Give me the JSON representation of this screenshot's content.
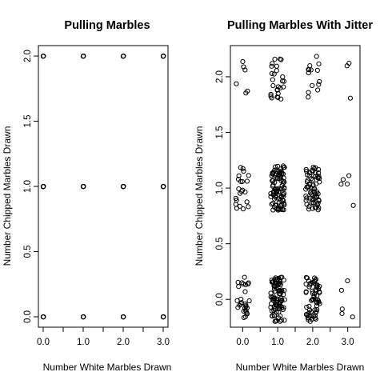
{
  "chart_data": [
    {
      "type": "scatter",
      "title": "Pulling Marbles",
      "xlabel": "Number White Marbles Drawn",
      "ylabel": "Number Chipped Marbles Drawn",
      "x_ticks": [
        "0.0",
        "1.0",
        "2.0",
        "3.0"
      ],
      "y_ticks": [
        "0.0",
        "0.5",
        "1.0",
        "1.5",
        "2.0"
      ],
      "xlim": [
        -0.12,
        3.12
      ],
      "ylim": [
        -0.08,
        2.08
      ],
      "grid": false,
      "marker": "open-circle",
      "points": [
        {
          "x": 0,
          "y": 0
        },
        {
          "x": 1,
          "y": 0
        },
        {
          "x": 2,
          "y": 0
        },
        {
          "x": 3,
          "y": 0
        },
        {
          "x": 0,
          "y": 1
        },
        {
          "x": 1,
          "y": 1
        },
        {
          "x": 2,
          "y": 1
        },
        {
          "x": 3,
          "y": 1
        },
        {
          "x": 0,
          "y": 2
        },
        {
          "x": 1,
          "y": 2
        },
        {
          "x": 2,
          "y": 2
        },
        {
          "x": 3,
          "y": 2
        }
      ]
    },
    {
      "type": "scatter",
      "title": "Pulling Marbles With Jitter",
      "xlabel": "Number White Marbles Drawn",
      "ylabel": "Number Chipped Marbles Drawn",
      "x_ticks": [
        "0.0",
        "1.0",
        "2.0",
        "3.0"
      ],
      "y_ticks": [
        "0.0",
        "0.5",
        "1.0",
        "1.5",
        "2.0"
      ],
      "xlim": [
        -0.35,
        3.35
      ],
      "ylim": [
        -0.25,
        2.28
      ],
      "grid": false,
      "marker": "open-circle",
      "jitter": {
        "x": 0.2,
        "y": 0.2
      },
      "groups": [
        {
          "x": 0,
          "y": 0,
          "count": 28
        },
        {
          "x": 1,
          "y": 0,
          "count": 90
        },
        {
          "x": 2,
          "y": 0,
          "count": 65
        },
        {
          "x": 3,
          "y": 0,
          "count": 5
        },
        {
          "x": 0,
          "y": 1,
          "count": 22
        },
        {
          "x": 1,
          "y": 1,
          "count": 95
        },
        {
          "x": 2,
          "y": 1,
          "count": 70
        },
        {
          "x": 3,
          "y": 1,
          "count": 5
        },
        {
          "x": 0,
          "y": 2,
          "count": 6
        },
        {
          "x": 1,
          "y": 2,
          "count": 26
        },
        {
          "x": 2,
          "y": 2,
          "count": 14
        },
        {
          "x": 3,
          "y": 2,
          "count": 3
        }
      ]
    }
  ]
}
